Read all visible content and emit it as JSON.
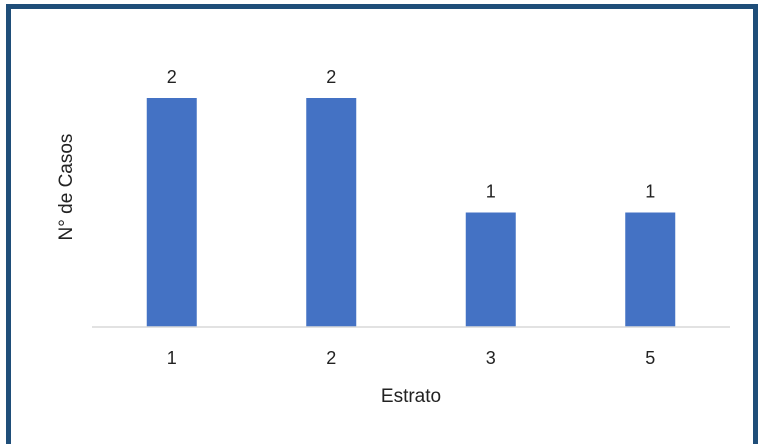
{
  "chart_data": {
    "type": "bar",
    "categories": [
      "1",
      "2",
      "3",
      "5"
    ],
    "values": [
      2,
      2,
      1,
      1
    ],
    "data_labels": [
      "2",
      "2",
      "1",
      "1"
    ],
    "title": "",
    "xlabel": "Estrato",
    "ylabel": "N° de Casos",
    "ylim": [
      0,
      2
    ],
    "grid": false,
    "legend": "none",
    "bar_color": "#4472c4",
    "frame_color": "#1f4e79"
  }
}
